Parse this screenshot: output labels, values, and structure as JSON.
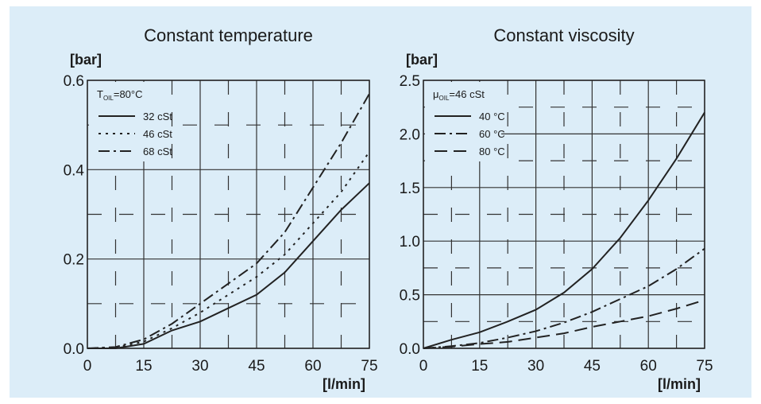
{
  "chart_data": [
    {
      "type": "line",
      "title": "Constant temperature",
      "ylabel": "[bar]",
      "xlabel": "[l/min]",
      "legend_title": {
        "symbol": "T",
        "subscript": "OIL",
        "text": "=80°C"
      },
      "x": [
        0,
        7.5,
        15,
        22.5,
        30,
        37.5,
        45,
        52.5,
        60,
        67.5,
        75
      ],
      "series": [
        {
          "name": "32 cSt",
          "color": "#222222",
          "linestyle": "solid",
          "values": [
            0,
            0,
            0.01,
            0.04,
            0.06,
            0.09,
            0.12,
            0.17,
            0.24,
            0.31,
            0.37
          ]
        },
        {
          "name": "46 cSt",
          "color": "#222222",
          "linestyle": "dotted",
          "values": [
            0,
            0.002,
            0.015,
            0.045,
            0.08,
            0.12,
            0.16,
            0.21,
            0.28,
            0.35,
            0.44
          ]
        },
        {
          "name": "68 cSt",
          "color": "#222222",
          "linestyle": "dashdot",
          "values": [
            0,
            0.003,
            0.02,
            0.055,
            0.1,
            0.145,
            0.19,
            0.26,
            0.36,
            0.46,
            0.57
          ]
        }
      ],
      "xlim": [
        0,
        75
      ],
      "xticks": [
        0,
        15,
        30,
        45,
        60,
        75
      ],
      "ylim": [
        0,
        0.6
      ],
      "yticks": [
        {
          "value": 0,
          "label": "0.0"
        },
        0.2,
        0.4,
        0.6
      ],
      "minor_xticks": [
        7.5,
        22.5,
        37.5,
        52.5,
        67.5
      ],
      "minor_yticks": [
        0.1,
        0.3,
        0.5
      ],
      "grid": true
    },
    {
      "type": "line",
      "title": "Constant viscosity",
      "ylabel": "[bar]",
      "xlabel": "[l/min]",
      "legend_title": {
        "symbol": "μ",
        "subscript": "OIL",
        "text": "=46 cSt"
      },
      "x": [
        0,
        7.5,
        15,
        22.5,
        30,
        37.5,
        45,
        52.5,
        60,
        67.5,
        75
      ],
      "series": [
        {
          "name": "40 °C",
          "color": "#222222",
          "linestyle": "solid",
          "values": [
            0,
            0.08,
            0.15,
            0.25,
            0.36,
            0.52,
            0.74,
            1.03,
            1.38,
            1.77,
            2.2
          ]
        },
        {
          "name": "60 °C",
          "color": "#222222",
          "linestyle": "dashdot",
          "values": [
            0,
            0.02,
            0.05,
            0.1,
            0.16,
            0.24,
            0.34,
            0.46,
            0.58,
            0.74,
            0.93
          ]
        },
        {
          "name": "80 °C",
          "color": "#222222",
          "linestyle": "longdash",
          "values": [
            0,
            0.015,
            0.04,
            0.06,
            0.1,
            0.14,
            0.2,
            0.25,
            0.3,
            0.37,
            0.45
          ]
        }
      ],
      "xlim": [
        0,
        75
      ],
      "xticks": [
        0,
        15,
        30,
        45,
        60,
        75
      ],
      "ylim": [
        0,
        2.5
      ],
      "yticks": [
        {
          "value": 0,
          "label": "0.0"
        },
        0.5,
        {
          "value": 1,
          "label": "1.0"
        },
        1.5,
        {
          "value": 2,
          "label": "2.0"
        },
        2.5
      ],
      "minor_xticks": [
        7.5,
        22.5,
        37.5,
        52.5,
        67.5
      ],
      "minor_yticks": [
        0.25,
        0.75,
        1.25,
        1.75,
        2.25
      ],
      "grid": true
    }
  ]
}
